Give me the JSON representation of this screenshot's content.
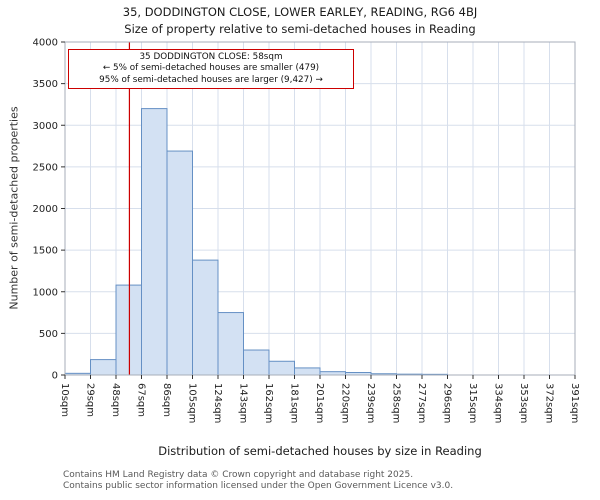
{
  "footer": {
    "line1": "Contains HM Land Registry data © Crown copyright and database right 2025.",
    "line2": "Contains public sector information licensed under the Open Government Licence v3.0."
  },
  "chart_data": {
    "type": "bar",
    "title": "35, DODDINGTON CLOSE, LOWER EARLEY, READING, RG6 4BJ",
    "subtitle": "Size of property relative to semi-detached houses in Reading",
    "xlabel": "Distribution of semi-detached houses by size in Reading",
    "ylabel": "Number of semi-detached properties",
    "x_tick_labels": [
      "10sqm",
      "29sqm",
      "48sqm",
      "67sqm",
      "86sqm",
      "105sqm",
      "124sqm",
      "143sqm",
      "162sqm",
      "181sqm",
      "201sqm",
      "220sqm",
      "239sqm",
      "258sqm",
      "277sqm",
      "296sqm",
      "315sqm",
      "334sqm",
      "353sqm",
      "372sqm",
      "391sqm"
    ],
    "bin_edges": [
      10,
      29,
      48,
      67,
      86,
      105,
      124,
      143,
      162,
      181,
      201,
      220,
      239,
      258,
      277,
      296,
      315,
      334,
      353,
      372,
      391
    ],
    "values": [
      20,
      185,
      1080,
      3200,
      2690,
      1380,
      750,
      300,
      165,
      85,
      40,
      30,
      15,
      10,
      8,
      0,
      0,
      0,
      0,
      0
    ],
    "ylim": [
      0,
      4000
    ],
    "y_ticks": [
      0,
      500,
      1000,
      1500,
      2000,
      2500,
      3000,
      3500,
      4000
    ],
    "grid": true,
    "marker": {
      "value_sqm": 58,
      "color": "#cc0000"
    },
    "annotation": {
      "line1": "35 DODDINGTON CLOSE: 58sqm",
      "line2": "← 5% of semi-detached houses are smaller (479)",
      "line3": "95% of semi-detached houses are larger (9,427) →"
    },
    "colors": {
      "bar_fill": "#d3e1f3",
      "bar_stroke": "#6590c4",
      "grid": "#d7dfec",
      "spine": "#a7aeb8",
      "marker": "#cc0000"
    }
  }
}
